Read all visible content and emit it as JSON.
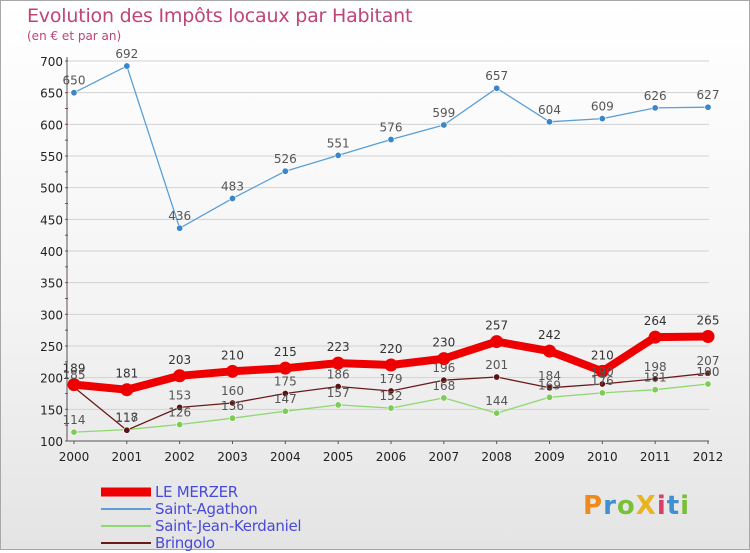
{
  "chart_data": {
    "type": "line",
    "title": "Evolution des Impôts locaux par Habitant",
    "subtitle": "(en € et par an)",
    "categories": [
      "2000",
      "2001",
      "2002",
      "2003",
      "2004",
      "2005",
      "2006",
      "2007",
      "2008",
      "2009",
      "2010",
      "2011",
      "2012"
    ],
    "ylim": [
      100,
      700
    ],
    "yticks": [
      "100",
      "150",
      "200",
      "250",
      "300",
      "350",
      "400",
      "450",
      "500",
      "550",
      "600",
      "650",
      "700"
    ],
    "grid": "horizontal",
    "legend_position": "bottom-left",
    "series": [
      {
        "name": "Saint-Agathon",
        "color": "#5b9fd6",
        "values": [
          650,
          692,
          436,
          483,
          526,
          551,
          576,
          599,
          657,
          604,
          609,
          626,
          627
        ],
        "labels": [
          "650",
          "692",
          "436",
          "483",
          "526",
          "551",
          "576",
          "599",
          "657",
          "604",
          "609",
          "626",
          "627"
        ]
      },
      {
        "name": "Saint-Jean-Kerdaniel",
        "color": "#8fd870",
        "values": [
          114,
          118,
          126,
          136,
          147,
          157,
          152,
          168,
          144,
          169,
          176,
          181,
          190
        ],
        "labels": [
          "114",
          "118",
          "126",
          "136",
          "147",
          "157",
          "152",
          "168",
          "144",
          "169",
          "176",
          "181",
          "190"
        ]
      },
      {
        "name": "Bringolo",
        "color": "#6b1a1a",
        "values": [
          185,
          117,
          153,
          160,
          175,
          186,
          179,
          196,
          201,
          184,
          190,
          198,
          207
        ],
        "labels": [
          "185",
          "117",
          "153",
          "160",
          "175",
          "186",
          "179",
          "196",
          "201",
          "184",
          "190",
          "198",
          "207"
        ]
      },
      {
        "name": "LE MERZER",
        "color": "#ee0000",
        "values": [
          189,
          181,
          203,
          210,
          215,
          223,
          220,
          230,
          257,
          242,
          210,
          264,
          265
        ],
        "labels": [
          "189",
          "181",
          "203",
          "210",
          "215",
          "223",
          "220",
          "230",
          "257",
          "242",
          "210",
          "264",
          "265"
        ]
      }
    ],
    "legend": [
      "LE MERZER",
      "Saint-Agathon",
      "Saint-Jean-Kerdaniel",
      "Bringolo"
    ]
  },
  "legend_items": [
    {
      "name": "LE MERZER",
      "color": "#ee0000",
      "thick": true
    },
    {
      "name": "Saint-Agathon",
      "color": "#5b9fd6",
      "thick": false
    },
    {
      "name": "Saint-Jean-Kerdaniel",
      "color": "#8fd870",
      "thick": false
    },
    {
      "name": "Bringolo",
      "color": "#6b1a1a",
      "thick": false
    }
  ],
  "logo": {
    "text": "ProXiti"
  }
}
